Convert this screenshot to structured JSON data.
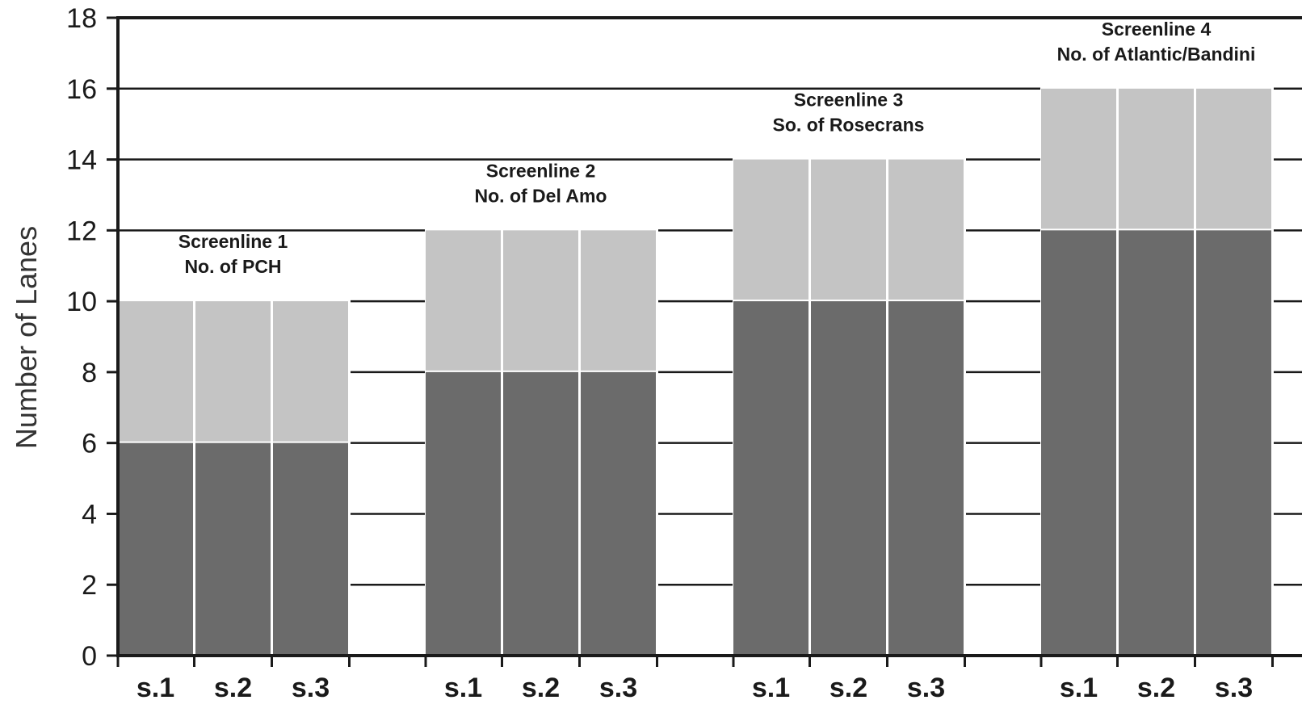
{
  "chart_data": {
    "type": "bar",
    "stacked": true,
    "ylabel": "Number of Lanes",
    "xlabel": "",
    "ylim": [
      0,
      18
    ],
    "yticks": [
      0,
      2,
      4,
      6,
      8,
      10,
      12,
      14,
      16,
      18
    ],
    "grid": true,
    "groups": [
      {
        "title_line1": "Screenline 1",
        "title_line2": "No. of PCH",
        "categories": [
          "s.1",
          "s.2",
          "s.3"
        ],
        "lower": [
          6,
          6,
          6
        ],
        "total": [
          10,
          10,
          10
        ]
      },
      {
        "title_line1": "Screenline 2",
        "title_line2": "No. of Del Amo",
        "categories": [
          "s.1",
          "s.2",
          "s.3"
        ],
        "lower": [
          8,
          8,
          8
        ],
        "total": [
          12,
          12,
          12
        ]
      },
      {
        "title_line1": "Screenline 3",
        "title_line2": "So. of Rosecrans",
        "categories": [
          "s.1",
          "s.2",
          "s.3"
        ],
        "lower": [
          10,
          10,
          10
        ],
        "total": [
          14,
          14,
          14
        ]
      },
      {
        "title_line1": "Screenline 4",
        "title_line2": "No. of Atlantic/Bandini",
        "categories": [
          "s.1",
          "s.2",
          "s.3"
        ],
        "lower": [
          12,
          12,
          12
        ],
        "total": [
          16,
          16,
          16
        ]
      }
    ],
    "colors": {
      "lower": "#6b6b6b",
      "upper": "#c4c4c4",
      "axis": "#1a1a1a",
      "grid": "#1a1a1a"
    }
  }
}
